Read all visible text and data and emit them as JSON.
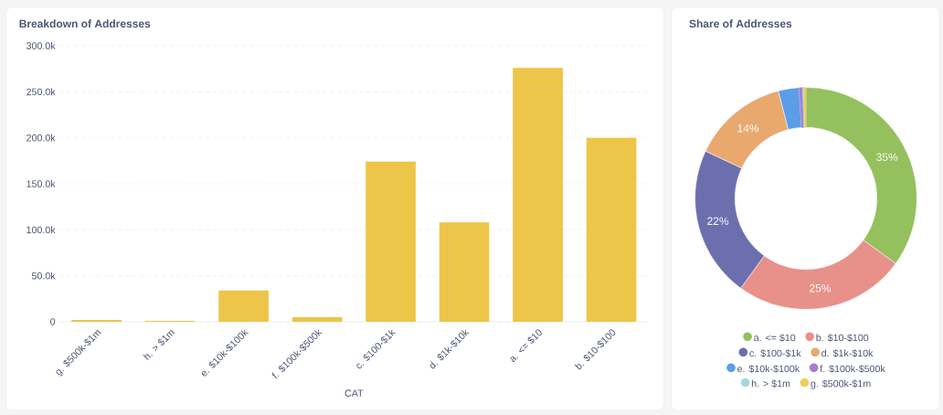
{
  "chart_data": [
    {
      "type": "bar",
      "title": "Breakdown of Addresses",
      "xlabel": "CAT",
      "categories": [
        "g. $500k-$1m",
        "h. > $1m",
        "e. $10k-$100k",
        "f. $100k-$500k",
        "c. $100-$1k",
        "d. $1k-$10k",
        "a. <= $10",
        "b. $10-$100"
      ],
      "values": [
        2,
        1,
        34,
        5,
        174,
        108,
        276,
        200
      ],
      "color": "#edc549",
      "ylim": [
        0,
        300
      ],
      "yticks": [
        0,
        {
          "value": 50,
          "label": "50.0k"
        },
        {
          "value": 100,
          "label": "100.0k"
        },
        {
          "value": 150,
          "label": "150.0k"
        },
        {
          "value": 200,
          "label": "200.0k"
        },
        {
          "value": 250,
          "label": "250.0k"
        },
        {
          "value": 300,
          "label": "300.0k"
        }
      ],
      "grid": "y"
    },
    {
      "type": "donut",
      "title": "Share of Addresses",
      "categories": [
        "a. <= $10",
        "b. $10-$100",
        "c. $100-$1k",
        "d. $1k-$10k",
        "e. $10k-$100k",
        "f. $100k-$500k",
        "h. > $1m",
        "g. $500k-$1m"
      ],
      "values": [
        35,
        25,
        22,
        14,
        3,
        0.5,
        0.2,
        0.3
      ],
      "colors": [
        "#94c05d",
        "#e8908a",
        "#6c6fad",
        "#e9a96e",
        "#5b9de6",
        "#a47fd0",
        "#a3d8dc",
        "#f0cc5a"
      ],
      "value_labels": [
        "35%",
        "25%",
        "22%",
        "14%",
        null,
        null,
        null,
        null
      ],
      "legend": "bottom"
    }
  ]
}
